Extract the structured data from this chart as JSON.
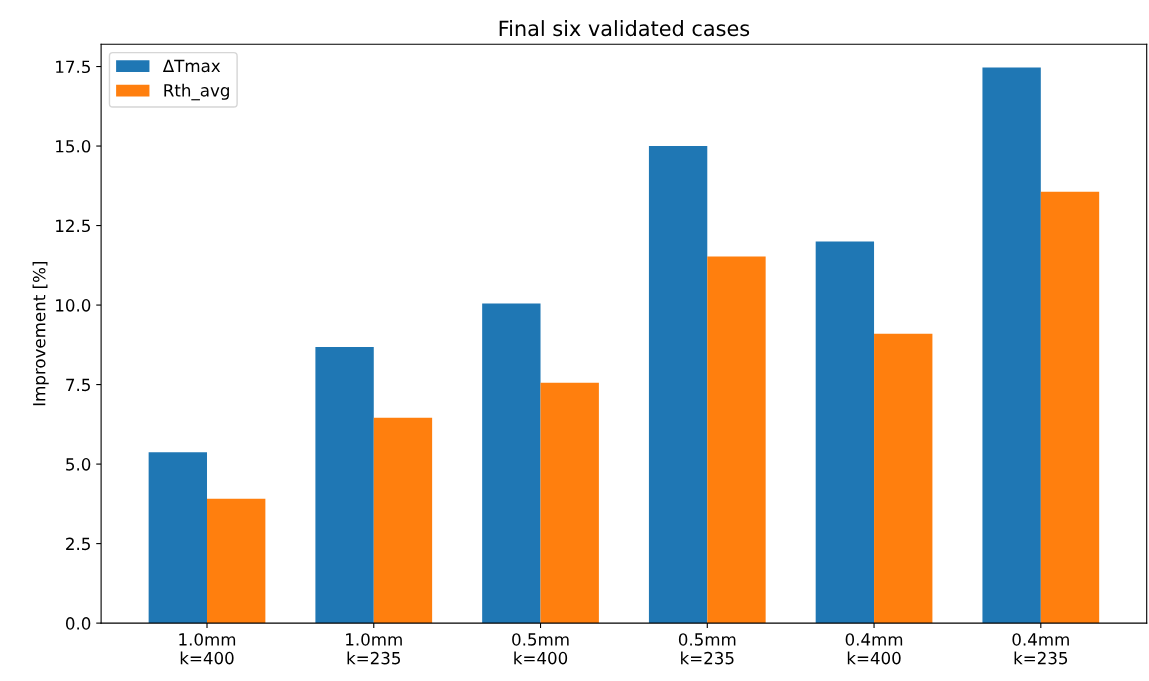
{
  "chart_data": {
    "type": "bar",
    "title": "Final six validated cases",
    "ylabel": "Improvement [%]",
    "categories": [
      "1.0mm\nk=400",
      "1.0mm\nk=235",
      "0.5mm\nk=400",
      "0.5mm\nk=235",
      "0.4mm\nk=400",
      "0.4mm\nk=235"
    ],
    "series": [
      {
        "name": "ΔTmax",
        "color": "#1f77b4",
        "values": [
          5.37,
          8.68,
          10.05,
          15.0,
          12.0,
          17.47
        ]
      },
      {
        "name": "Rth_avg",
        "color": "#ff7f0e",
        "values": [
          3.91,
          6.46,
          7.56,
          11.53,
          9.1,
          13.56
        ]
      }
    ],
    "ylim": [
      0,
      18.2
    ],
    "yticks": [
      {
        "value": 0,
        "label": "0.0"
      },
      {
        "value": 2.5,
        "label": "2.5"
      },
      {
        "value": 5,
        "label": "5.0"
      },
      {
        "value": 7.5,
        "label": "7.5"
      },
      {
        "value": 10,
        "label": "10.0"
      },
      {
        "value": 12.5,
        "label": "12.5"
      },
      {
        "value": 15,
        "label": "15.0"
      },
      {
        "value": 17.5,
        "label": "17.5"
      }
    ],
    "legend": "top left",
    "grid": false
  }
}
